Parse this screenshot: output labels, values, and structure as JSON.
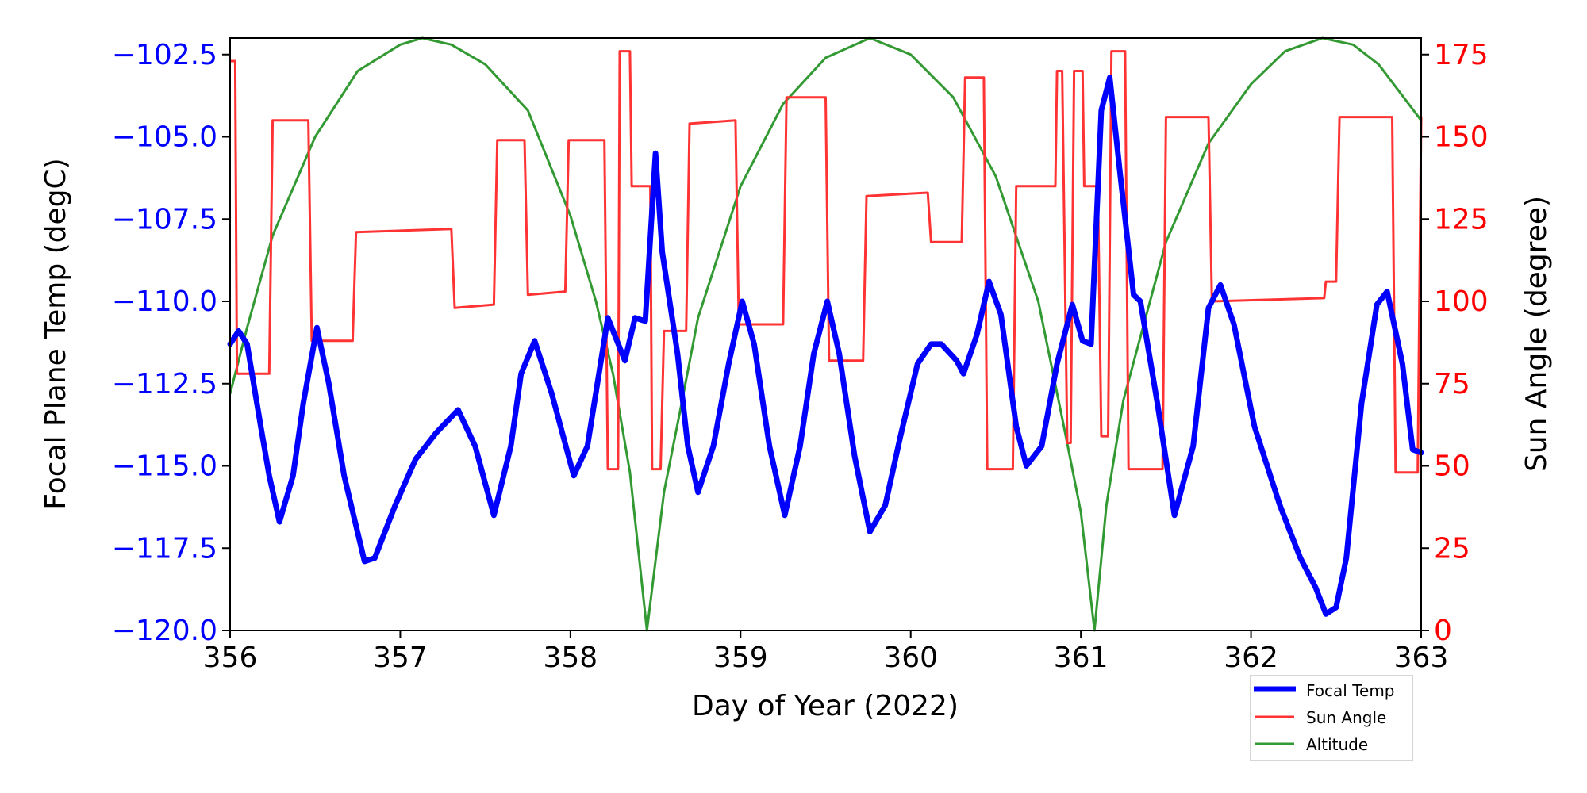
{
  "chart_data": {
    "type": "line",
    "xlabel": "Day of Year (2022)",
    "ylabel_left": "Focal Plane Temp (degC)",
    "ylabel_right": "Sun Angle (degree)",
    "xlim": [
      356,
      363
    ],
    "ylim_left": [
      -120,
      -102
    ],
    "ylim_right": [
      0,
      180
    ],
    "x_ticks": [
      "356",
      "357",
      "358",
      "359",
      "360",
      "361",
      "362",
      "363"
    ],
    "y_left_ticks": [
      "-120.0",
      "-117.5",
      "-115.0",
      "-112.5",
      "-110.0",
      "-107.5",
      "-105.0",
      "-102.5"
    ],
    "y_right_ticks": [
      "0",
      "25",
      "50",
      "75",
      "100",
      "125",
      "150",
      "175"
    ],
    "grid": false,
    "legend_placement": "below-right",
    "colors": {
      "left_axis": "#0000ff",
      "right_axis": "#ff0000",
      "focal": "#0000ff",
      "sun": "#ff3333",
      "altitude": "#339933"
    },
    "series": [
      {
        "name": "Focal Temp",
        "axis": "left",
        "points": [
          [
            356.0,
            -111.3
          ],
          [
            356.05,
            -110.9
          ],
          [
            356.1,
            -111.3
          ],
          [
            356.18,
            -113.8
          ],
          [
            356.23,
            -115.3
          ],
          [
            356.29,
            -116.7
          ],
          [
            356.37,
            -115.3
          ],
          [
            356.43,
            -113.1
          ],
          [
            356.51,
            -110.8
          ],
          [
            356.58,
            -112.5
          ],
          [
            356.67,
            -115.3
          ],
          [
            356.79,
            -117.9
          ],
          [
            356.85,
            -117.8
          ],
          [
            356.97,
            -116.2
          ],
          [
            357.09,
            -114.8
          ],
          [
            357.21,
            -114.0
          ],
          [
            357.34,
            -113.3
          ],
          [
            357.44,
            -114.4
          ],
          [
            357.55,
            -116.5
          ],
          [
            357.65,
            -114.4
          ],
          [
            357.71,
            -112.2
          ],
          [
            357.79,
            -111.2
          ],
          [
            357.89,
            -112.8
          ],
          [
            358.02,
            -115.3
          ],
          [
            358.1,
            -114.4
          ],
          [
            358.22,
            -110.5
          ],
          [
            358.32,
            -111.8
          ],
          [
            358.38,
            -110.5
          ],
          [
            358.44,
            -110.6
          ],
          [
            358.5,
            -105.5
          ],
          [
            358.54,
            -108.5
          ],
          [
            358.63,
            -111.6
          ],
          [
            358.69,
            -114.4
          ],
          [
            358.75,
            -115.8
          ],
          [
            358.84,
            -114.4
          ],
          [
            358.93,
            -111.9
          ],
          [
            359.01,
            -110.0
          ],
          [
            359.08,
            -111.3
          ],
          [
            359.17,
            -114.4
          ],
          [
            359.26,
            -116.5
          ],
          [
            359.35,
            -114.4
          ],
          [
            359.43,
            -111.6
          ],
          [
            359.51,
            -110.0
          ],
          [
            359.58,
            -111.6
          ],
          [
            359.67,
            -114.7
          ],
          [
            359.76,
            -117.0
          ],
          [
            359.85,
            -116.2
          ],
          [
            359.94,
            -114.1
          ],
          [
            360.04,
            -111.9
          ],
          [
            360.12,
            -111.3
          ],
          [
            360.18,
            -111.3
          ],
          [
            360.27,
            -111.8
          ],
          [
            360.31,
            -112.2
          ],
          [
            360.39,
            -111.0
          ],
          [
            360.46,
            -109.4
          ],
          [
            360.53,
            -110.4
          ],
          [
            360.62,
            -113.8
          ],
          [
            360.68,
            -115.0
          ],
          [
            360.77,
            -114.4
          ],
          [
            360.86,
            -111.9
          ],
          [
            360.95,
            -110.1
          ],
          [
            361.01,
            -111.2
          ],
          [
            361.06,
            -111.3
          ],
          [
            361.12,
            -104.2
          ],
          [
            361.17,
            -103.2
          ],
          [
            361.23,
            -106.1
          ],
          [
            361.31,
            -109.8
          ],
          [
            361.35,
            -110.0
          ],
          [
            361.45,
            -113.1
          ],
          [
            361.55,
            -116.5
          ],
          [
            361.66,
            -114.4
          ],
          [
            361.75,
            -110.2
          ],
          [
            361.82,
            -109.5
          ],
          [
            361.9,
            -110.7
          ],
          [
            362.02,
            -113.8
          ],
          [
            362.17,
            -116.2
          ],
          [
            362.29,
            -117.8
          ],
          [
            362.38,
            -118.7
          ],
          [
            362.44,
            -119.5
          ],
          [
            362.5,
            -119.3
          ],
          [
            362.56,
            -117.8
          ],
          [
            362.65,
            -113.1
          ],
          [
            362.74,
            -110.1
          ],
          [
            362.8,
            -109.7
          ],
          [
            362.89,
            -111.9
          ],
          [
            362.95,
            -114.5
          ],
          [
            363.0,
            -114.6
          ]
        ]
      },
      {
        "name": "Sun Angle",
        "axis": "right",
        "points": [
          [
            356.0,
            173
          ],
          [
            356.03,
            173
          ],
          [
            356.04,
            78
          ],
          [
            356.23,
            78
          ],
          [
            356.25,
            155
          ],
          [
            356.46,
            155
          ],
          [
            356.48,
            88
          ],
          [
            356.72,
            88
          ],
          [
            356.74,
            121
          ],
          [
            357.3,
            122
          ],
          [
            357.32,
            98
          ],
          [
            357.55,
            99
          ],
          [
            357.57,
            149
          ],
          [
            357.73,
            149
          ],
          [
            357.75,
            102
          ],
          [
            357.97,
            103
          ],
          [
            357.99,
            149
          ],
          [
            358.2,
            149
          ],
          [
            358.22,
            49
          ],
          [
            358.28,
            49
          ],
          [
            358.29,
            176
          ],
          [
            358.35,
            176
          ],
          [
            358.36,
            135
          ],
          [
            358.47,
            135
          ],
          [
            358.48,
            49
          ],
          [
            358.53,
            49
          ],
          [
            358.55,
            91
          ],
          [
            358.68,
            91
          ],
          [
            358.7,
            154
          ],
          [
            358.97,
            155
          ],
          [
            358.99,
            93
          ],
          [
            359.25,
            93
          ],
          [
            359.27,
            162
          ],
          [
            359.5,
            162
          ],
          [
            359.52,
            82
          ],
          [
            359.72,
            82
          ],
          [
            359.74,
            132
          ],
          [
            360.1,
            133
          ],
          [
            360.12,
            118
          ],
          [
            360.3,
            118
          ],
          [
            360.32,
            168
          ],
          [
            360.43,
            168
          ],
          [
            360.45,
            49
          ],
          [
            360.6,
            49
          ],
          [
            360.62,
            135
          ],
          [
            360.85,
            135
          ],
          [
            360.86,
            170
          ],
          [
            360.89,
            170
          ],
          [
            360.92,
            57
          ],
          [
            360.94,
            57
          ],
          [
            360.96,
            170
          ],
          [
            361.01,
            170
          ],
          [
            361.02,
            135
          ],
          [
            361.1,
            135
          ],
          [
            361.12,
            59
          ],
          [
            361.16,
            59
          ],
          [
            361.18,
            176
          ],
          [
            361.26,
            176
          ],
          [
            361.28,
            49
          ],
          [
            361.48,
            49
          ],
          [
            361.5,
            156
          ],
          [
            361.75,
            156
          ],
          [
            361.77,
            100
          ],
          [
            362.43,
            101
          ],
          [
            362.44,
            106
          ],
          [
            362.5,
            106
          ],
          [
            362.52,
            156
          ],
          [
            362.83,
            156
          ],
          [
            362.85,
            48
          ],
          [
            362.98,
            48
          ],
          [
            363.0,
            156
          ]
        ]
      },
      {
        "name": "Altitude",
        "axis": "right",
        "points": [
          [
            356.0,
            72
          ],
          [
            356.1,
            92
          ],
          [
            356.25,
            120
          ],
          [
            356.5,
            150
          ],
          [
            356.75,
            170
          ],
          [
            357.0,
            178
          ],
          [
            357.13,
            180
          ],
          [
            357.3,
            178
          ],
          [
            357.5,
            172
          ],
          [
            357.75,
            158
          ],
          [
            358.0,
            126
          ],
          [
            358.15,
            100
          ],
          [
            358.25,
            78
          ],
          [
            358.35,
            48
          ],
          [
            358.45,
            0
          ],
          [
            358.55,
            42
          ],
          [
            358.65,
            68
          ],
          [
            358.75,
            95
          ],
          [
            359.0,
            135
          ],
          [
            359.25,
            160
          ],
          [
            359.5,
            174
          ],
          [
            359.76,
            180
          ],
          [
            360.0,
            175
          ],
          [
            360.25,
            162
          ],
          [
            360.5,
            138
          ],
          [
            360.75,
            100
          ],
          [
            360.9,
            62
          ],
          [
            361.0,
            36
          ],
          [
            361.08,
            0
          ],
          [
            361.15,
            38
          ],
          [
            361.25,
            70
          ],
          [
            361.5,
            118
          ],
          [
            361.75,
            148
          ],
          [
            362.0,
            166
          ],
          [
            362.2,
            176
          ],
          [
            362.42,
            180
          ],
          [
            362.6,
            178
          ],
          [
            362.75,
            172
          ],
          [
            363.0,
            155
          ]
        ]
      }
    ]
  }
}
